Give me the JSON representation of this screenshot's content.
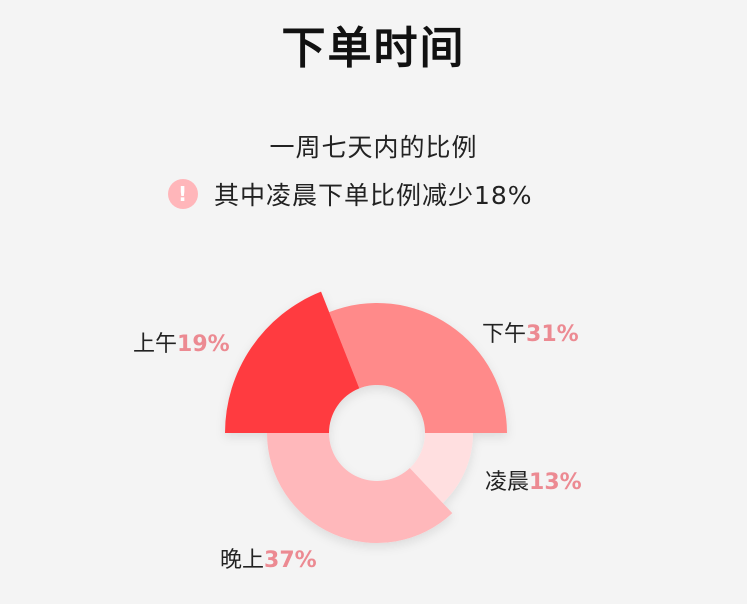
{
  "title": "下单时间",
  "subtitle": "一周七天内的比例",
  "note": {
    "icon": "exclamation-circle-icon",
    "text": "其中凌晨下单比例减少18%",
    "icon_color": "#ffb6ba"
  },
  "chart_data": {
    "type": "pie",
    "variant": "rose-donut",
    "categories": [
      "下午",
      "上午",
      "晚上",
      "凌晨"
    ],
    "values": [
      31,
      19,
      37,
      13
    ],
    "labels": [
      "31%",
      "19%",
      "37%",
      "13%"
    ],
    "colors": [
      "#ff8a8a",
      "#ff3b3f",
      "#ffb8bb",
      "#ffdfe0"
    ],
    "label_color": "#ec8a92",
    "legend": "none"
  }
}
